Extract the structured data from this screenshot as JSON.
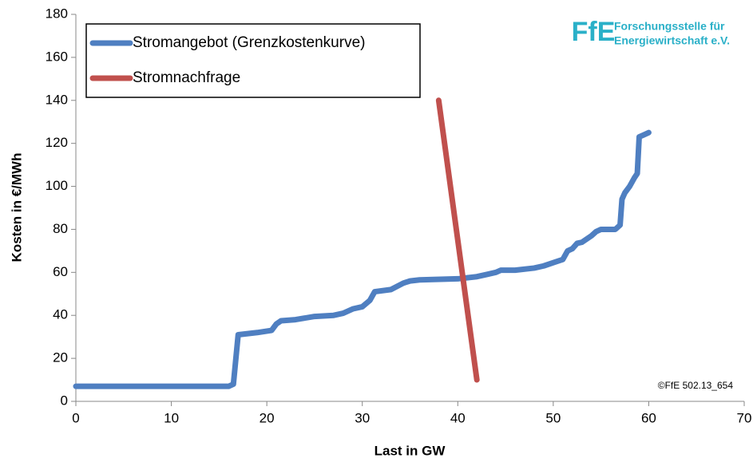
{
  "chart_data": {
    "type": "line",
    "xlabel": "Last in GW",
    "ylabel": "Kosten in €/MWh",
    "xlim": [
      0,
      70
    ],
    "ylim": [
      0,
      180
    ],
    "xticks": [
      0,
      10,
      20,
      30,
      40,
      50,
      60,
      70
    ],
    "yticks": [
      0,
      20,
      40,
      60,
      80,
      100,
      120,
      140,
      160,
      180
    ],
    "grid": false,
    "legend": "upper left",
    "logo": {
      "abbr": "FfE",
      "line1": "Forschungsstelle für",
      "line2": "Energiewirtschaft e.V."
    },
    "credit": "©FfE 502.13_654",
    "series": [
      {
        "name": "Stromangebot (Grenzkostenkurve)",
        "color": "#4f7fc1",
        "x": [
          0,
          16,
          16.5,
          17,
          19,
          20.5,
          21,
          21.5,
          23,
          25,
          27,
          28,
          29,
          30,
          30.8,
          31.3,
          33,
          34.3,
          35,
          36,
          40,
          42,
          43,
          44,
          44.5,
          46,
          48,
          49,
          50,
          51,
          51.5,
          52,
          52.5,
          53,
          54,
          54.5,
          55,
          56.5,
          57,
          57.2,
          57.5,
          58,
          58.5,
          58.8,
          59,
          59.5,
          60
        ],
        "values": [
          7,
          7,
          8,
          31,
          32,
          33,
          36,
          37.5,
          38,
          39.5,
          40,
          41,
          43,
          44,
          47,
          51,
          52,
          55,
          56,
          56.5,
          57,
          58,
          59,
          60,
          61,
          61,
          62,
          63,
          64.5,
          66,
          70,
          71,
          73.5,
          74,
          77,
          79,
          80,
          80,
          82,
          94,
          97,
          100,
          104,
          106,
          123,
          124,
          125
        ]
      },
      {
        "name": "Stromnachfrage",
        "color": "#c0504d",
        "x": [
          38,
          42
        ],
        "values": [
          140,
          10
        ]
      }
    ]
  }
}
